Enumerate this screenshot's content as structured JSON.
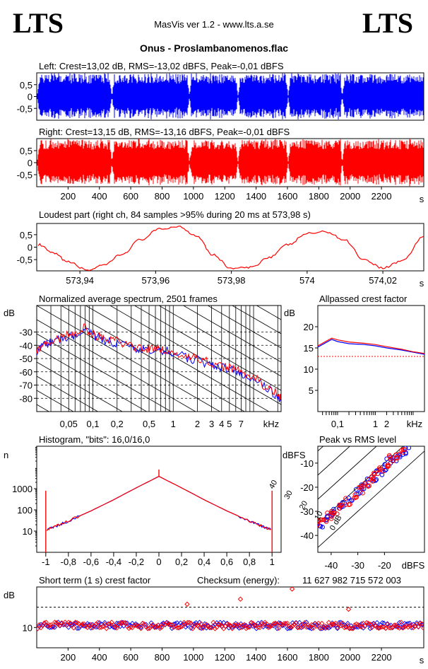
{
  "header": {
    "logo_left": "LTS",
    "logo_right": "LTS",
    "app_title": "MasVis ver 1.2 - www.lts.a.se",
    "file_title": "Onus - Proslambanomenos.flac"
  },
  "colors": {
    "left": "#0000ff",
    "right": "#ff0000",
    "axis": "#000000"
  },
  "chart_data": [
    {
      "id": "left-waveform",
      "type": "area",
      "title": "Left: Crest=13,02 dB, RMS=-13,02 dBFS, Peak=-0,01 dBFS",
      "ytick_labels": [
        "0,5",
        "0",
        "-0,5"
      ],
      "yticks": [
        0.5,
        0,
        -0.5
      ],
      "ylim": [
        -1,
        1
      ],
      "xlim": [
        0,
        2470
      ],
      "series": [
        {
          "color": "#0000ff",
          "note_gaps_s": [
            480,
            975,
            1285,
            1605,
            1950
          ]
        }
      ]
    },
    {
      "id": "right-waveform",
      "type": "area",
      "title": "Right: Crest=13,15 dB, RMS=-13,16 dBFS, Peak=-0,01 dBFS",
      "ytick_labels": [
        "0,5",
        "0",
        "-0,5"
      ],
      "yticks": [
        0.5,
        0,
        -0.5
      ],
      "ylim": [
        -1,
        1
      ],
      "xlim": [
        0,
        2470
      ],
      "xticks": [
        200,
        400,
        600,
        800,
        1000,
        1200,
        1400,
        1600,
        1800,
        2000,
        2200
      ],
      "xtick_labels": [
        "200",
        "400",
        "600",
        "800",
        "1000",
        "1200",
        "1400",
        "1600",
        "1800",
        "2000",
        "2200"
      ],
      "xunit": "s"
    },
    {
      "id": "loudest-part",
      "type": "line",
      "title": "Loudest part (right ch, 84 samples >95% during 20 ms at 573,98 s)",
      "ytick_labels": [
        "0,5",
        "0",
        "-0,5"
      ],
      "yticks": [
        0.5,
        0,
        -0.5
      ],
      "ylim": [
        -0.95,
        0.95
      ],
      "xlim": [
        573.9286,
        574.0308
      ],
      "xticks": [
        573.94,
        573.96,
        573.98,
        574.0,
        574.02
      ],
      "xtick_labels": [
        "573,94",
        "573,96",
        "573,98",
        "574",
        "574,02"
      ],
      "xunit": "s",
      "x": [
        573.929,
        573.933,
        573.937,
        573.942,
        573.946,
        573.951,
        573.956,
        573.961,
        573.966,
        573.971,
        573.975,
        573.98,
        573.985,
        573.99,
        573.995,
        574.0,
        574.005,
        574.01,
        574.015,
        574.02,
        574.025,
        574.031
      ],
      "y": [
        0.1,
        -0.25,
        -0.6,
        -0.92,
        -0.75,
        -0.3,
        0.3,
        0.72,
        0.83,
        0.45,
        -0.3,
        -0.85,
        -0.82,
        -0.4,
        0.1,
        0.55,
        0.62,
        0.28,
        -0.5,
        -0.83,
        -0.55,
        0.45
      ]
    },
    {
      "id": "avg-spectrum",
      "type": "line",
      "title": "Normalized average spectrum, 2501 frames",
      "ylabel": "dB",
      "ytick_labels": [
        "-30",
        "-40",
        "-50",
        "-60",
        "-70",
        "-80"
      ],
      "yticks": [
        -30,
        -40,
        -50,
        -60,
        -70,
        -80
      ],
      "ylim": [
        -90,
        -10
      ],
      "xscale": "log",
      "xlim": [
        0.02,
        22
      ],
      "xticks": [
        0.05,
        0.1,
        0.2,
        0.5,
        1,
        2,
        3,
        4,
        5,
        7
      ],
      "xtick_labels": [
        "0,05",
        "0,1",
        "0,2",
        "0,5",
        "1",
        "2",
        "3",
        "4",
        "5",
        "7"
      ],
      "xunit": "kHz",
      "x": [
        0.02,
        0.025,
        0.03,
        0.04,
        0.05,
        0.06,
        0.08,
        0.1,
        0.12,
        0.15,
        0.2,
        0.3,
        0.4,
        0.5,
        0.7,
        1,
        1.5,
        2,
        3,
        4,
        5,
        7,
        10,
        15,
        20,
        22
      ],
      "series": [
        {
          "color": "#0000ff",
          "values": [
            -44,
            -40,
            -38,
            -35,
            -33,
            -33,
            -27,
            -33,
            -34,
            -37,
            -38,
            -42,
            -43,
            -44,
            -44,
            -45,
            -50,
            -51,
            -55,
            -57,
            -58,
            -61,
            -65,
            -73,
            -78,
            -82
          ]
        },
        {
          "color": "#ff0000",
          "values": [
            -43,
            -39,
            -37,
            -34,
            -32,
            -32,
            -26,
            -32,
            -33,
            -36,
            -37,
            -41,
            -42,
            -43,
            -43,
            -44,
            -49,
            -50,
            -54,
            -56,
            -57,
            -60,
            -64,
            -72,
            -77,
            -81
          ]
        }
      ]
    },
    {
      "id": "allpassed-crest",
      "type": "line",
      "title": "Allpassed crest factor",
      "ylabel": "dB",
      "ytick_labels": [
        "20",
        "15",
        "10",
        "5"
      ],
      "yticks": [
        20,
        15,
        10,
        5
      ],
      "ylim": [
        0,
        25
      ],
      "xscale": "log",
      "xlim": [
        0.03,
        20
      ],
      "xticks": [
        0.1,
        1,
        2
      ],
      "xtick_labels": [
        "0,1",
        "1",
        "2"
      ],
      "xunit": "kHz",
      "reference_db": 13,
      "x": [
        0.03,
        0.05,
        0.07,
        0.1,
        0.2,
        0.5,
        1,
        2,
        5,
        10,
        20
      ],
      "series": [
        {
          "color": "#0000ff",
          "values": [
            15.2,
            16.3,
            17.0,
            16.5,
            16.0,
            15.8,
            15.5,
            15.0,
            14.5,
            14.0,
            13.5
          ]
        },
        {
          "color": "#ff0000",
          "values": [
            15.5,
            16.6,
            17.3,
            16.9,
            16.4,
            16.1,
            15.8,
            15.3,
            14.7,
            14.1,
            13.7
          ]
        }
      ]
    },
    {
      "id": "histogram",
      "type": "line",
      "title": "Histogram, \"bits\": 16,0/16,0",
      "ylabel": "n",
      "yscale": "log",
      "ytick_labels": [
        "1000",
        "100",
        "10"
      ],
      "yticks": [
        1000,
        100,
        10
      ],
      "ylim": [
        1,
        100000
      ],
      "xlim": [
        -1.08,
        1.08
      ],
      "xticks": [
        -1,
        -0.8,
        -0.6,
        -0.4,
        -0.2,
        0,
        0.2,
        0.4,
        0.6,
        0.8,
        1
      ],
      "xtick_labels": [
        "-1",
        "-0,8",
        "-0,6",
        "-0,4",
        "-0,2",
        "0",
        "0,2",
        "0,4",
        "0,6",
        "0,8",
        "1"
      ],
      "x": [
        -0.99,
        -0.9,
        -0.8,
        -0.6,
        -0.4,
        -0.2,
        0,
        0.2,
        0.4,
        0.6,
        0.8,
        0.9,
        0.99
      ],
      "series": [
        {
          "color": "#0000ff",
          "values": [
            12,
            18,
            30,
            90,
            300,
            1100,
            3800,
            1100,
            300,
            90,
            30,
            18,
            12
          ]
        },
        {
          "color": "#ff0000",
          "values": [
            12,
            18,
            30,
            90,
            300,
            1100,
            3800,
            1100,
            300,
            90,
            30,
            18,
            12
          ]
        }
      ],
      "end_spike_value": 800,
      "center_spike_value": 8000
    },
    {
      "id": "peak-vs-rms",
      "type": "scatter",
      "title": "Peak vs RMS level",
      "ylabel": "dBFS",
      "xlabel": "dBFS",
      "ytick_labels": [
        "-10",
        "-20",
        "-30",
        "-40"
      ],
      "yticks": [
        -10,
        -20,
        -30,
        -40
      ],
      "xticks": [
        -40,
        -30,
        -20
      ],
      "xtick_labels": [
        "-40",
        "-30",
        "-20"
      ],
      "xlim": [
        -45,
        -5
      ],
      "ylim": [
        -47,
        -3
      ],
      "crest_lines": [
        0,
        10,
        20,
        30,
        40
      ],
      "crest_labels": [
        "0 dB",
        "10",
        "20",
        "30",
        "40"
      ],
      "series": [
        {
          "color": "#0000ff",
          "x": [
            -44,
            -42,
            -40,
            -38,
            -35,
            -33,
            -30,
            -28,
            -26,
            -24,
            -22,
            -20,
            -18,
            -16,
            -14,
            -12
          ],
          "y": [
            -36,
            -33,
            -31,
            -29,
            -27,
            -25,
            -22,
            -20,
            -18,
            -16,
            -14,
            -12,
            -9,
            -8,
            -6,
            -5
          ]
        },
        {
          "color": "#ff0000",
          "x": [
            -44,
            -43,
            -41,
            -39,
            -36,
            -34,
            -31,
            -29,
            -27,
            -25,
            -23,
            -21,
            -19,
            -17,
            -15,
            -13
          ],
          "y": [
            -35,
            -34,
            -32,
            -30,
            -28,
            -26,
            -23,
            -21,
            -19,
            -17,
            -15,
            -12,
            -10,
            -8,
            -7,
            -5
          ]
        }
      ]
    },
    {
      "id": "short-term-crest",
      "type": "scatter",
      "title": "Short term (1 s) crest factor",
      "checksum_label": "Checksum (energy):",
      "checksum_value": "11 627 982 715 572 003",
      "ylabel": "dB",
      "ytick_labels": [
        "10"
      ],
      "yticks": [
        10
      ],
      "ylim": [
        0,
        30
      ],
      "reference_db": 20,
      "xlim": [
        0,
        2470
      ],
      "xticks": [
        200,
        400,
        600,
        800,
        1000,
        1200,
        1400,
        1600,
        1800,
        2000,
        2200
      ],
      "xtick_labels": [
        "200",
        "400",
        "600",
        "800",
        "1000",
        "1200",
        "1400",
        "1600",
        "1800",
        "2000",
        "2200"
      ],
      "xunit": "s",
      "outliers": [
        {
          "x": 960,
          "y": 21.5
        },
        {
          "x": 1300,
          "y": 24
        },
        {
          "x": 1630,
          "y": 29
        },
        {
          "x": 1990,
          "y": 19
        }
      ]
    }
  ]
}
